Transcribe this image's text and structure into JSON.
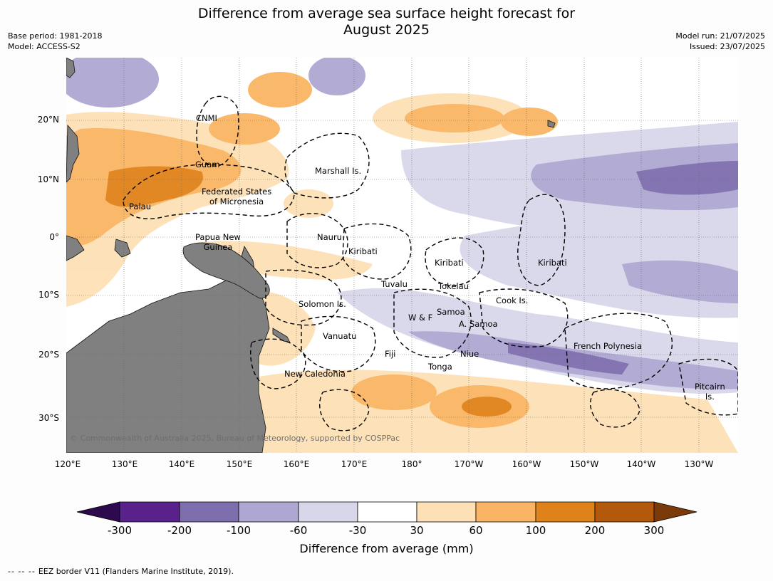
{
  "header": {
    "title_line1": "Difference from average sea surface height forecast for",
    "title_line2": "August 2025",
    "base_period": "Base period: 1981-2018",
    "model": "Model: ACCESS-S2",
    "model_run": "Model run: 21/07/2025",
    "issued": "Issued: 23/07/2025"
  },
  "map": {
    "lat_labels": [
      "20°N",
      "10°N",
      "0°",
      "10°S",
      "20°S",
      "30°S"
    ],
    "lon_labels": [
      "120°E",
      "130°E",
      "140°E",
      "150°E",
      "160°E",
      "170°E",
      "180°",
      "170°W",
      "160°W",
      "150°W",
      "140°W",
      "130°W"
    ],
    "place_labels": [
      "CNMI",
      "Guam",
      "Marshall Is.",
      "Federated States\nof Micronesia",
      "Palau",
      "Papua New\nGuinea",
      "Nauru",
      "Kiribati",
      "Kiribati",
      "Kiribati",
      "Tuvalu",
      "Tokelau",
      "Cook Is.",
      "Solomon Is.",
      "W & F",
      "Samoa",
      "A. Samoa",
      "Vanuatu",
      "Fiji",
      "Niue",
      "Tonga",
      "French Polynesia",
      "New Caledonia",
      "Pitcairn\nIs."
    ],
    "copyright": "© Commonwealth of Australia 2025, Bureau of Meteorology, supported by COSPPac",
    "land_color": "#808080"
  },
  "colorbar": {
    "ticks": [
      "-300",
      "-200",
      "-100",
      "-60",
      "-30",
      "30",
      "60",
      "100",
      "200",
      "300"
    ],
    "colors": [
      "#2d0a4e",
      "#58218b",
      "#7e6eae",
      "#aea7d1",
      "#d8d7ea",
      "#ffffff",
      "#fde0b6",
      "#f9b563",
      "#e0821a",
      "#b4580c",
      "#7a3a0a"
    ],
    "label": "Difference from average (mm)"
  },
  "footer": {
    "eez_symbol": "-- -- --",
    "eez_note": "EEZ border V11 (Flanders Marine Institute, 2019)."
  }
}
